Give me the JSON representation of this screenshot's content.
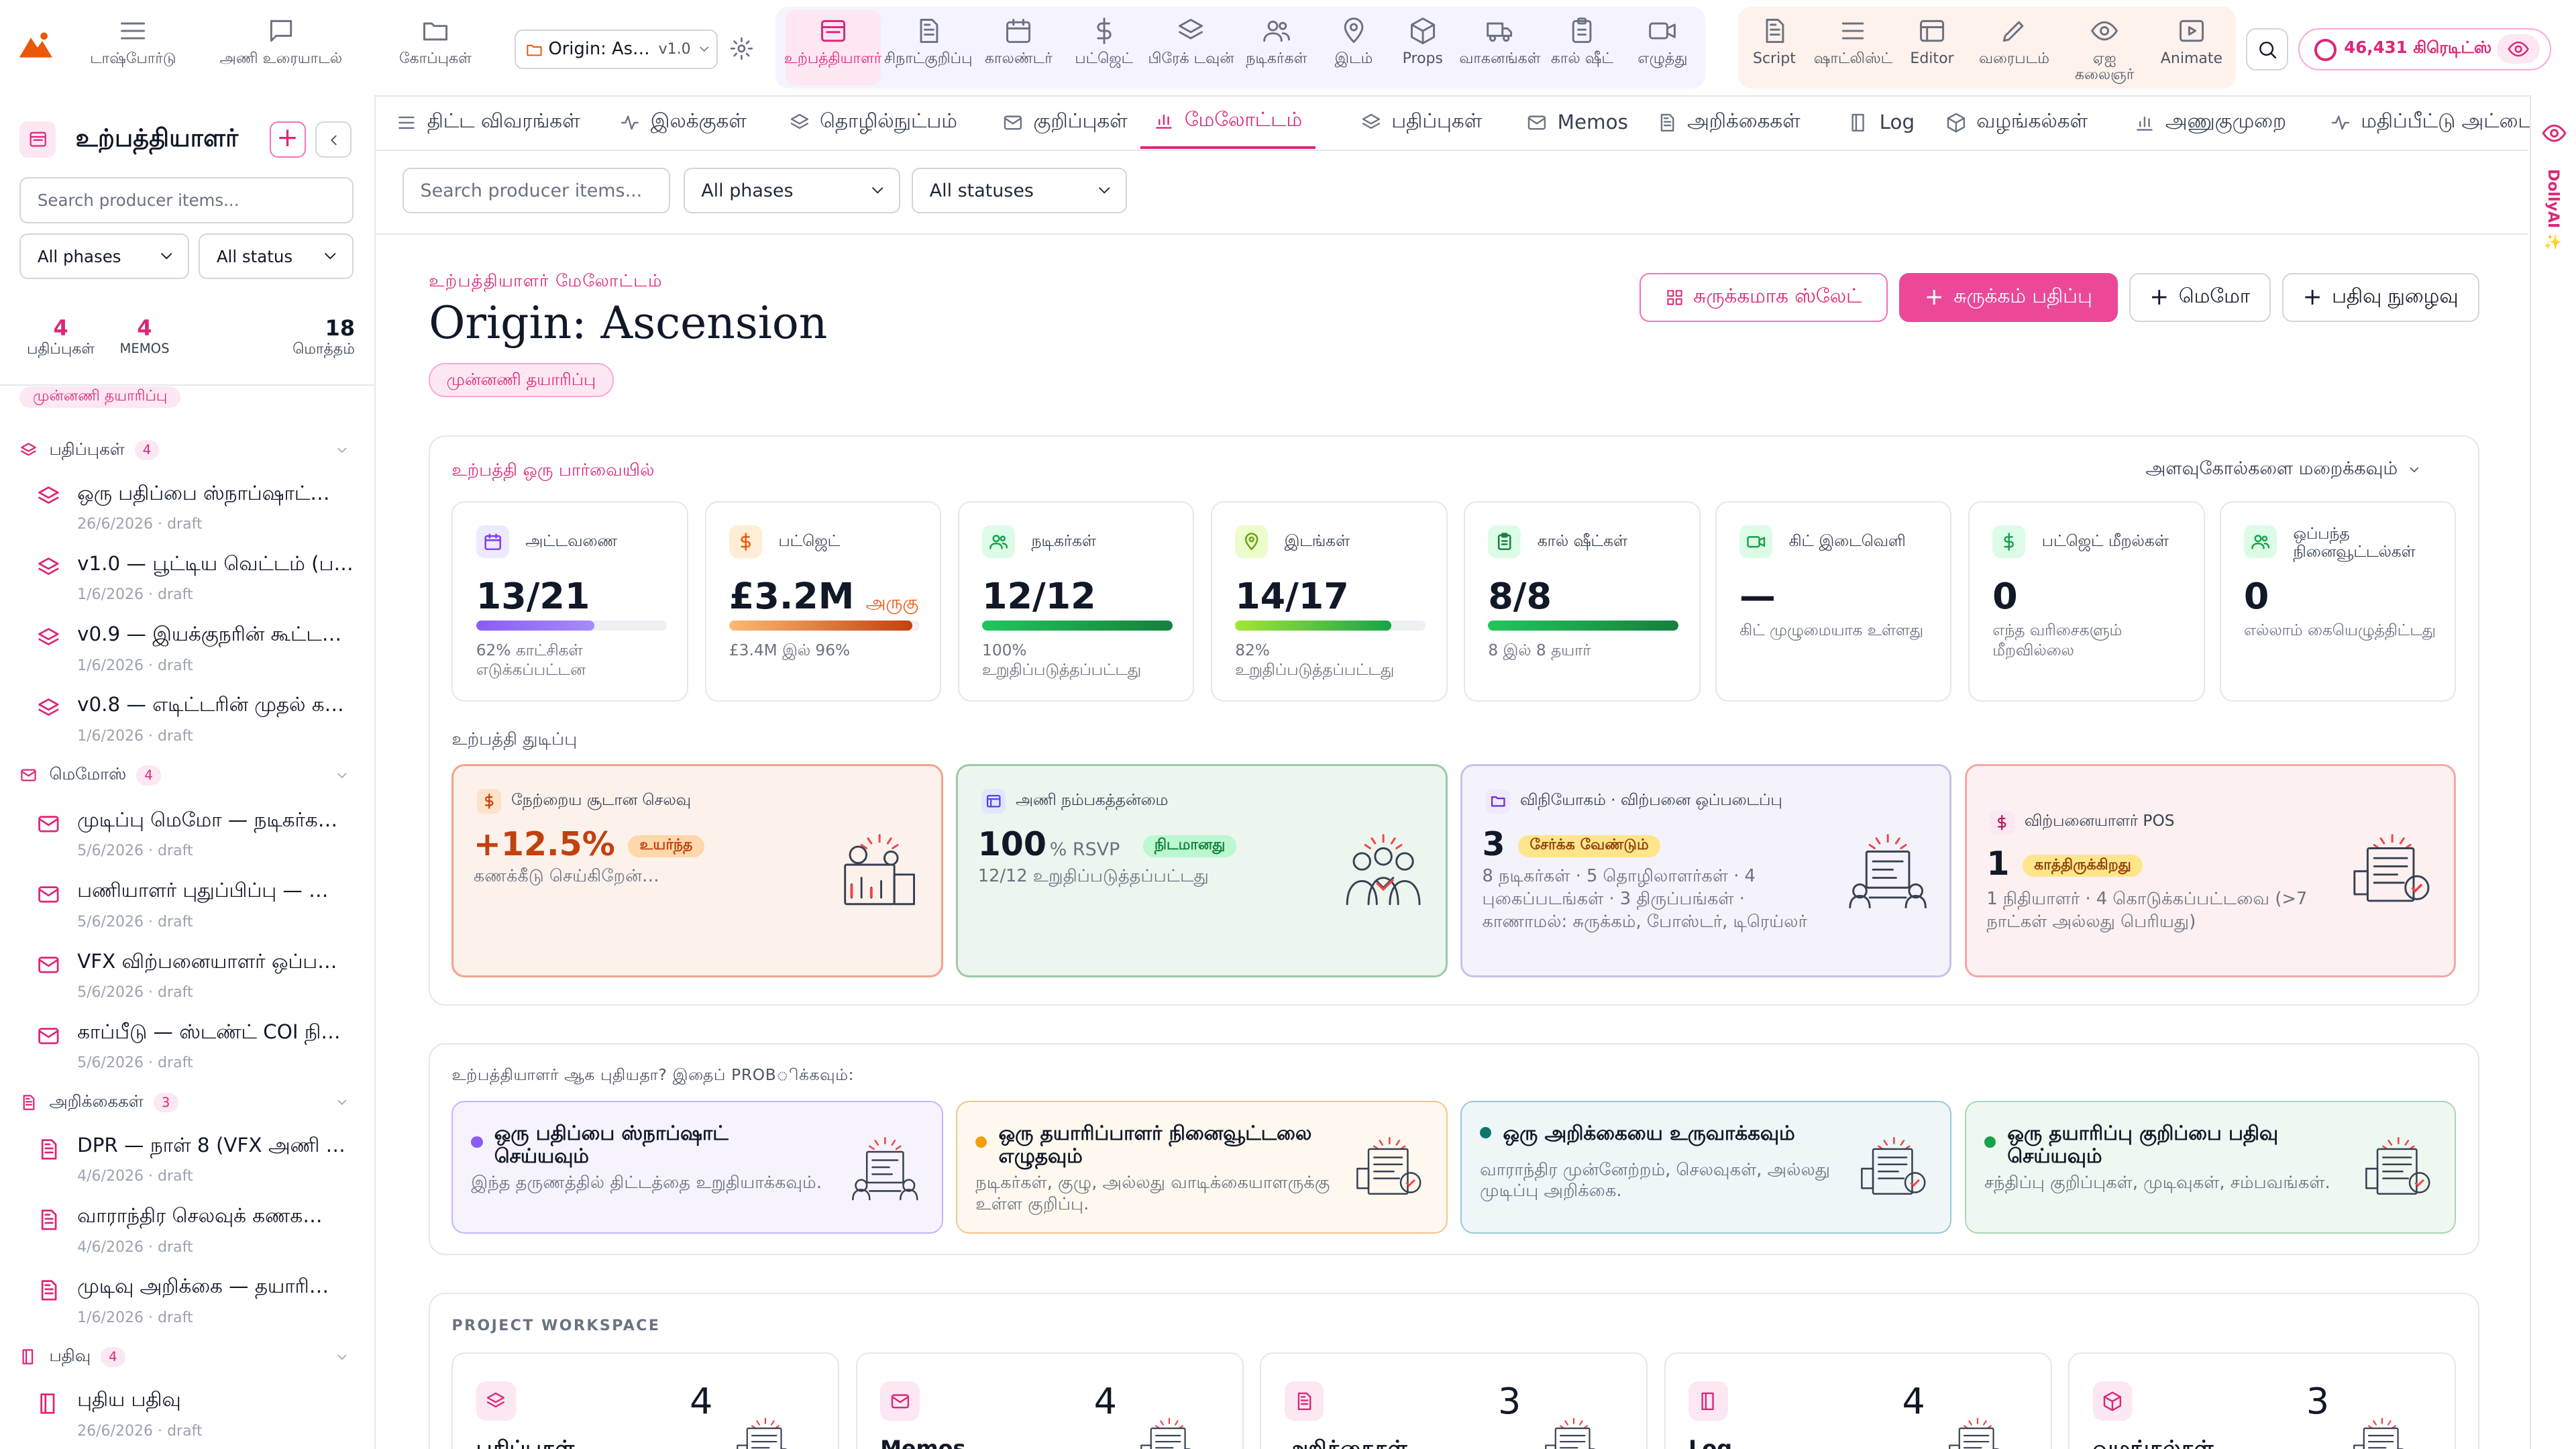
{
  "topbar": {
    "nav": [
      {
        "label": "டாஷ்போர்டு",
        "icon": "menu-icon"
      },
      {
        "label": "அணி உரையாடல்",
        "icon": "chat-icon"
      },
      {
        "label": "கோப்புகள்",
        "icon": "folder-icon"
      }
    ],
    "project": {
      "name": "Origin: As…",
      "version": "v1.0"
    },
    "tools_primary": [
      {
        "label": "உற்பத்தியாளர்",
        "icon": "browser-icon",
        "active": true
      },
      {
        "label": "சிநாட்குறிப்பு",
        "icon": "document-icon"
      },
      {
        "label": "காலண்டர்",
        "icon": "calendar-icon"
      },
      {
        "label": "பட்ஜெட்",
        "icon": "dollar-icon"
      },
      {
        "label": "பிரேக் டவுன்",
        "icon": "layers-icon"
      },
      {
        "label": "நடிகர்கள்",
        "icon": "users-icon"
      },
      {
        "label": "இடம்",
        "icon": "map-pin-icon"
      },
      {
        "label": "Props",
        "icon": "cube-icon"
      },
      {
        "label": "வாகனங்கள்",
        "icon": "truck-icon"
      },
      {
        "label": "கால் ஷீட்",
        "icon": "clipboard-icon"
      },
      {
        "label": "எழுத்து",
        "icon": "video-icon"
      }
    ],
    "tools_secondary": [
      {
        "label": "Script",
        "icon": "document-icon"
      },
      {
        "label": "ஷாட்லிஸ்ட்",
        "icon": "list-icon"
      },
      {
        "label": "Editor",
        "icon": "editor-icon"
      },
      {
        "label": "வரைபடம்",
        "icon": "pen-icon"
      },
      {
        "label": "ஏஐ கலைஞர்",
        "icon": "eye-icon"
      },
      {
        "label": "Animate",
        "icon": "play-icon"
      }
    ],
    "credits": "46,431 கிரெடிட்ஸ்"
  },
  "sidebar": {
    "title": "உற்பத்தியாளர்",
    "search_placeholder": "Search producer items...",
    "phase_filter": "All phases",
    "status_filter": "All status",
    "stats": [
      {
        "value": "4",
        "label": "பதிப்புகள்"
      },
      {
        "value": "4",
        "label": "MEMOS"
      },
      {
        "value": "18",
        "label": "மொத்தம்"
      }
    ],
    "phase_badge": "முன்னணி தயாரிப்பு",
    "sections": [
      {
        "title": "பதிப்புகள்",
        "count": "4",
        "icon": "layers-icon",
        "items": [
          {
            "title": "ஒரு பதிப்பை ஸ்நாப்ஷாட்…",
            "sub": "26/6/2026 · draft"
          },
          {
            "title": "v1.0 — பூட்டிய வெட்டம் (ப…",
            "sub": "1/6/2026 · draft"
          },
          {
            "title": "v0.9 — இயக்குநரின் கூட்ட…",
            "sub": "1/6/2026 · draft"
          },
          {
            "title": "v0.8 — எடிட்டரின் முதல் க…",
            "sub": "1/6/2026 · draft"
          }
        ]
      },
      {
        "title": "மெமோஸ்",
        "count": "4",
        "icon": "mail-icon",
        "items": [
          {
            "title": "முடிப்பு மெமோ — நடிகர்க…",
            "sub": "5/6/2026 · draft"
          },
          {
            "title": "பணியாளர் புதுப்பிப்பு — …",
            "sub": "5/6/2026 · draft"
          },
          {
            "title": "VFX விற்பனையாளர் ஒப்ப…",
            "sub": "5/6/2026 · draft"
          },
          {
            "title": "காப்பீடு — ஸ்டண்ட் COI நி…",
            "sub": "5/6/2026 · draft"
          }
        ]
      },
      {
        "title": "அறிக்கைகள்",
        "count": "3",
        "icon": "document-icon",
        "items": [
          {
            "title": "DPR — நாள் 8 (VFX அணி மு…",
            "sub": "4/6/2026 · draft"
          },
          {
            "title": "வாராந்திர செலவுக் கணக…",
            "sub": "4/6/2026 · draft"
          },
          {
            "title": "முடிவு அறிக்கை — தயாரி…",
            "sub": "1/6/2026 · draft"
          }
        ]
      },
      {
        "title": "பதிவு",
        "count": "4",
        "icon": "book-icon",
        "items": [
          {
            "title": "புதிய பதிவு",
            "sub": "26/6/2026 · draft"
          }
        ]
      }
    ]
  },
  "tabs": [
    {
      "label": "திட்ட விவரங்கள்",
      "icon": "list-icon"
    },
    {
      "label": "இலக்குகள்",
      "icon": "activity-icon"
    },
    {
      "label": "தொழில்நுட்பம்",
      "icon": "layers-icon"
    },
    {
      "label": "குறிப்புகள்",
      "icon": "mail-icon"
    },
    {
      "label": "மேலோட்டம்",
      "icon": "bar-chart-icon",
      "active": true
    },
    {
      "label": "பதிப்புகள்",
      "icon": "layers-icon"
    },
    {
      "label": "Memos",
      "icon": "mail-icon"
    },
    {
      "label": "அறிக்கைகள்",
      "icon": "document-icon"
    },
    {
      "label": "Log",
      "icon": "book-icon"
    },
    {
      "label": "வழங்கல்கள்",
      "icon": "cube-icon"
    },
    {
      "label": "அணுகுமுறை",
      "icon": "bar-chart-icon"
    },
    {
      "label": "மதிப்பீட்டு அட்டை",
      "icon": "activity-icon"
    }
  ],
  "filters": {
    "search_placeholder": "Search producer items...",
    "phases": "All phases",
    "statuses": "All statuses"
  },
  "header": {
    "eyebrow": "உற்பத்தியாளர் மேலோட்டம்",
    "title": "Origin: Ascension",
    "phase": "முன்னணி தயாரிப்பு",
    "buttons": {
      "slate": "சுருக்கமாக ஸ்லேட்",
      "publish": "சுருக்கம் பதிப்பு",
      "memo": "மெமோ",
      "log": "பதிவு நுழைவு"
    }
  },
  "overview": {
    "title": "உற்பத்தி ஒரு பார்வையில்",
    "toggle": "அளவுகோல்களை மறைக்கவும்",
    "kpis": [
      {
        "label": "அட்டவணை",
        "value": "13/21",
        "sub": "62% காட்சிகள் எடுக்கப்பட்டன",
        "progress": 0.62,
        "icon": "calendar-icon",
        "icon_bg": "#ede9fe",
        "icon_color": "#7c3aed",
        "bar": "linear-gradient(90deg,#8b5cf6,#a78bfa)"
      },
      {
        "label": "பட்ஜெட்",
        "value": "£3.2M",
        "tag": "அருகு",
        "sub": "£3.4M இல் 96%",
        "progress": 0.96,
        "icon": "dollar-icon",
        "icon_bg": "#ffedd5",
        "icon_color": "#ea580c",
        "bar": "linear-gradient(90deg,#fdba74,#c2410c)"
      },
      {
        "label": "நடிகர்கள்",
        "value": "12/12",
        "sub": "100% உறுதிப்படுத்தப்பட்டது",
        "progress": 1.0,
        "icon": "users-icon",
        "icon_bg": "#dcfce7",
        "icon_color": "#16a34a",
        "bar": "linear-gradient(90deg,#22c55e,#15803d)"
      },
      {
        "label": "இடங்கள்",
        "value": "14/17",
        "sub": "82% உறுதிப்படுத்தப்பட்டது",
        "progress": 0.82,
        "icon": "map-pin-icon",
        "icon_bg": "#ecfccb",
        "icon_color": "#65a30d",
        "bar": "linear-gradient(90deg,#a3e635,#16a34a)"
      },
      {
        "label": "கால் ஷீட்கள்",
        "value": "8/8",
        "sub": "8 இல் 8 தயார்",
        "progress": 1.0,
        "icon": "clipboard-icon",
        "icon_bg": "#dcfce7",
        "icon_color": "#15803d",
        "bar": "linear-gradient(90deg,#22c55e,#15803d)"
      },
      {
        "label": "கிட் இடைவெளி",
        "value": "—",
        "sub": "கிட் முழுமையாக உள்ளது",
        "icon": "video-icon",
        "icon_bg": "#dcfce7",
        "icon_color": "#16a34a"
      },
      {
        "label": "பட்ஜெட் மீறல்கள்",
        "value": "0",
        "sub": "எந்த வரிசைகளும் மீறவில்லை",
        "icon": "dollar-icon",
        "icon_bg": "#dcfce7",
        "icon_color": "#16a34a"
      },
      {
        "label": "ஒப்பந்த நினைவூட்டல்கள்",
        "value": "0",
        "sub": "எல்லாம் கையெழுத்திட்டது",
        "icon": "users-icon",
        "icon_bg": "#dcfce7",
        "icon_color": "#16a34a"
      }
    ],
    "pulse_title": "உற்பத்தி துடிப்பு",
    "pulse": [
      {
        "title": "நேற்றைய சூடான செலவு",
        "value": "+12.5%",
        "tag": "உயர்ந்த",
        "desc": "கணக்கீடு செய்கிறேன்…",
        "icon": "dollar-icon"
      },
      {
        "title": "அணி நம்பகத்தன்மை",
        "value": "100",
        "unit": "% RSVP",
        "tag": "நிடமானது",
        "desc": "12/12 உறுதிப்படுத்தப்பட்டது",
        "icon": "editor-icon"
      },
      {
        "title": "விநியோகம் · விற்பனை ஒப்படைப்பு",
        "value": "3",
        "tag": "சேர்க்க வேண்டும்",
        "desc": "8 நடிகர்கள் · 5 தொழிலாளர்கள் · 4 புகைப்படங்கள் · 3 திருப்பங்கள் · காணாமல்: சுருக்கம், போஸ்டர், டிரெய்லர்",
        "icon": "folder-icon"
      },
      {
        "title": "விற்பனையாளர் POS",
        "value": "1",
        "tag": "காத்திருக்கிறது",
        "desc": "1 நிதியாளர் · 4 கொடுக்கப்பட்டவை (>7 நாட்கள் அல்லது பெரியது)",
        "icon": "dollar-icon"
      }
    ]
  },
  "getting_started": {
    "title": "உற்பத்தியாளர் ஆக புதியதா? இதைப் PROBிக்கவும்:",
    "cards": [
      {
        "title": "ஒரு பதிப்பை ஸ்நாப்ஷாட் செய்யவும்",
        "desc": "இந்த தருணத்தில் திட்டத்தை உறுதியாக்கவும்."
      },
      {
        "title": "ஒரு தயாரிப்பாளர் நினைவூட்டலை எழுதவும்",
        "desc": "நடிகர்கள், குழு, அல்லது வாடிக்கையாளருக்கு உள்ள குறிப்பு."
      },
      {
        "title": "ஒரு அறிக்கையை உருவாக்கவும்",
        "desc": "வாராந்திர முன்னேற்றம், செலவுகள், அல்லது முடிப்பு அறிக்கை."
      },
      {
        "title": "ஒரு தயாரிப்பு குறிப்பை பதிவு செய்யவும்",
        "desc": "சந்திப்பு குறிப்புகள், முடிவுகள், சம்பவங்கள்."
      }
    ]
  },
  "workspace": {
    "title": "PROJECT WORKSPACE",
    "cards": [
      {
        "title": "பதிப்புகள்",
        "count": "4",
        "icon": "layers-icon"
      },
      {
        "title": "Memos",
        "count": "4",
        "icon": "mail-icon"
      },
      {
        "title": "அறிக்கைகள்",
        "count": "3",
        "icon": "document-icon"
      },
      {
        "title": "Log",
        "count": "4",
        "icon": "book-icon"
      },
      {
        "title": "வழங்கல்கள்",
        "count": "3",
        "icon": "cube-icon"
      }
    ]
  },
  "side_rail": {
    "label": "DollyAI ✨"
  },
  "colors": {
    "accent": "#db2777",
    "accent_soft": "#fce7f3",
    "logo": "#ea580c"
  }
}
